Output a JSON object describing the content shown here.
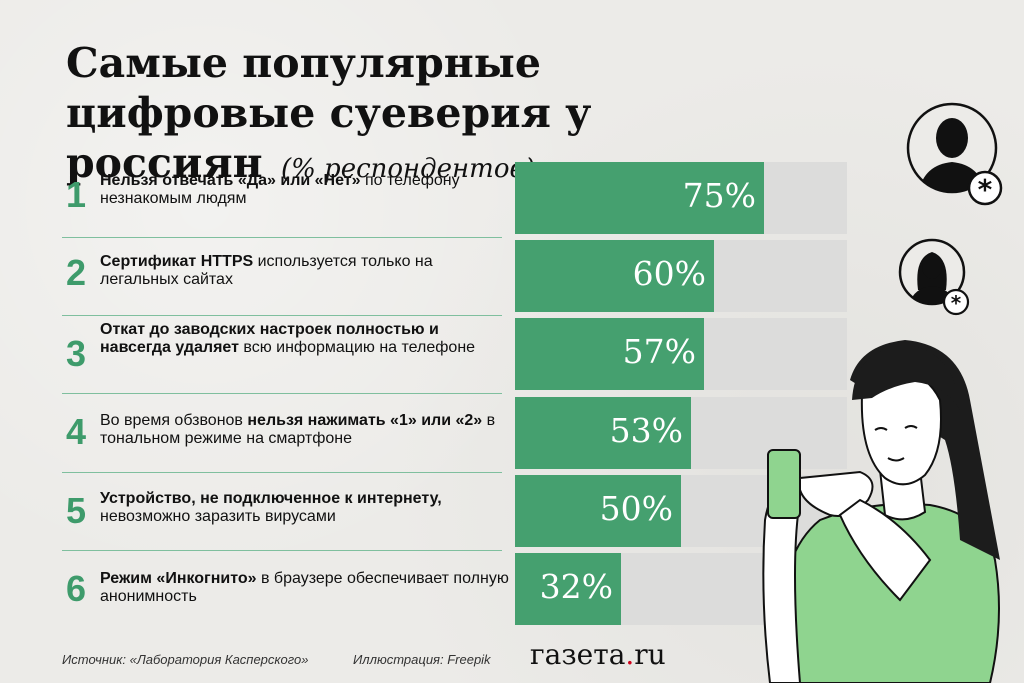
{
  "title": {
    "main": "Самые популярные цифровые суеверия у россиян",
    "subtitle": "(% респондентов)"
  },
  "colors": {
    "accent": "#45a06f",
    "number": "#3e9b6b",
    "bar_bg": "#dcdcdb",
    "logo_dot": "#d0021b"
  },
  "rows": [
    {
      "num": "1",
      "parts": [
        {
          "b": true,
          "t": "Нельзя отвечать «Да» или «Нет»"
        },
        {
          "b": false,
          "t": " по телефону незнакомым людям"
        }
      ]
    },
    {
      "num": "2",
      "parts": [
        {
          "b": true,
          "t": "Сертификат HTTPS"
        },
        {
          "b": false,
          "t": " используется только на легальных сайтах"
        }
      ]
    },
    {
      "num": "3",
      "parts": [
        {
          "b": true,
          "t": "Откат до заводских настроек полностью и навсегда удаляет"
        },
        {
          "b": false,
          "t": " всю информацию на телефоне"
        }
      ]
    },
    {
      "num": "4",
      "parts": [
        {
          "b": false,
          "t": "Во время обзвонов "
        },
        {
          "b": true,
          "t": "нельзя нажимать «1» или «2»"
        },
        {
          "b": false,
          "t": " в тональном режиме на смартфоне"
        }
      ]
    },
    {
      "num": "5",
      "parts": [
        {
          "b": true,
          "t": "Устройство, не подключенное к интернету,"
        },
        {
          "b": false,
          "t": " невозможно заразить вирусами"
        }
      ]
    },
    {
      "num": "6",
      "parts": [
        {
          "b": true,
          "t": "Режим «Инкогнито»"
        },
        {
          "b": false,
          "t": " в браузере обеспечивает полную анонимность"
        }
      ]
    }
  ],
  "chart_data": {
    "type": "bar",
    "orientation": "horizontal",
    "categories": [
      "Нельзя отвечать «Да» или «Нет» по телефону незнакомым людям",
      "Сертификат HTTPS используется только на легальных сайтах",
      "Откат до заводских настроек полностью и навсегда удаляет всю информацию на телефоне",
      "Во время обзвонов нельзя нажимать «1» или «2» в тональном режиме на смартфоне",
      "Устройство, не подключенное к интернету, невозможно заразить вирусами",
      "Режим «Инкогнито» в браузере обеспечивает полную анонимность"
    ],
    "values": [
      75,
      60,
      57,
      53,
      50,
      32
    ],
    "value_labels": [
      "75%",
      "60%",
      "57%",
      "53%",
      "50%",
      "32%"
    ],
    "title": "Самые популярные цифровые суеверия у россиян",
    "subtitle": "(% респондентов)",
    "xlim": [
      0,
      100
    ],
    "grid": false
  },
  "footer": {
    "source": "Источник: «Лаборатория Касперского»",
    "illustration": "Иллюстрация: Freepik",
    "logo_main": "газета",
    "logo_dot": ".",
    "logo_tld": "ru"
  },
  "icons": [
    "male-user-icon",
    "female-user-icon",
    "asterisk-icon",
    "woman-with-phone-illustration"
  ]
}
